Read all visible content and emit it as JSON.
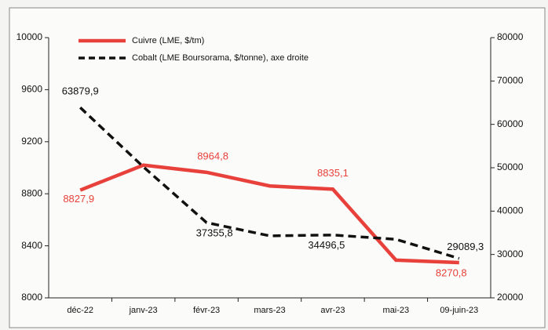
{
  "chart_data": {
    "type": "line",
    "categories": [
      "déc-22",
      "janv-23",
      "févr-23",
      "mars-23",
      "avr-23",
      "mai-23",
      "09-juin-23"
    ],
    "series": [
      {
        "name": "Cuivre (LME, $/tm)",
        "color": "#e8403a",
        "dash": false,
        "values": [
          8827.9,
          9020,
          8964.8,
          8860,
          8835.1,
          8290,
          8270.8
        ],
        "value_labels": [
          "8827,9",
          null,
          "8964,8",
          null,
          "8835,1",
          null,
          "8270,8"
        ]
      },
      {
        "name": "Cobalt (LME Boursorama, $/tonne), axe droite",
        "color": "#111111",
        "dash": true,
        "axis": "y2",
        "values": [
          63879.9,
          50200,
          37355.8,
          34300,
          34496.5,
          33500,
          29089.3
        ],
        "value_labels": [
          "63879,9",
          null,
          "37355,8",
          null,
          "34496,5",
          null,
          "29089,3"
        ]
      }
    ],
    "ylim": [
      8000,
      10000
    ],
    "yticks": [
      8000,
      8400,
      8800,
      9200,
      9600,
      10000
    ],
    "y2lim": [
      20000,
      80000
    ],
    "y2ticks": [
      20000,
      30000,
      40000,
      50000,
      60000,
      70000,
      80000
    ]
  }
}
